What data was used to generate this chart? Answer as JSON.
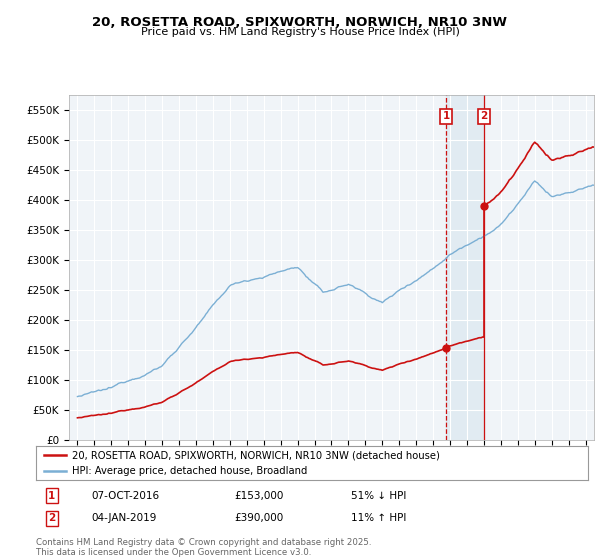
{
  "title": "20, ROSETTA ROAD, SPIXWORTH, NORWICH, NR10 3NW",
  "subtitle": "Price paid vs. HM Land Registry's House Price Index (HPI)",
  "legend_entry1": "20, ROSETTA ROAD, SPIXWORTH, NORWICH, NR10 3NW (detached house)",
  "legend_entry2": "HPI: Average price, detached house, Broadland",
  "sale1_date": "07-OCT-2016",
  "sale1_price": 153000,
  "sale1_label": "51% ↓ HPI",
  "sale2_date": "04-JAN-2019",
  "sale2_price": 390000,
  "sale2_label": "11% ↑ HPI",
  "sale1_year": 2016.77,
  "sale2_year": 2019.01,
  "hpi_color": "#7bafd4",
  "price_color": "#cc1111",
  "vline1_color": "#cc1111",
  "vline2_color": "#cc1111",
  "shade_color": "#dce8f0",
  "footer": "Contains HM Land Registry data © Crown copyright and database right 2025.\nThis data is licensed under the Open Government Licence v3.0.",
  "ylim_min": 0,
  "ylim_max": 575000,
  "yticks": [
    0,
    50000,
    100000,
    150000,
    200000,
    250000,
    300000,
    350000,
    400000,
    450000,
    500000,
    550000
  ],
  "ytick_labels": [
    "£0",
    "£50K",
    "£100K",
    "£150K",
    "£200K",
    "£250K",
    "£300K",
    "£350K",
    "£400K",
    "£450K",
    "£500K",
    "£550K"
  ],
  "xlim_min": 1994.5,
  "xlim_max": 2025.5,
  "background_color": "#f0f4f8"
}
